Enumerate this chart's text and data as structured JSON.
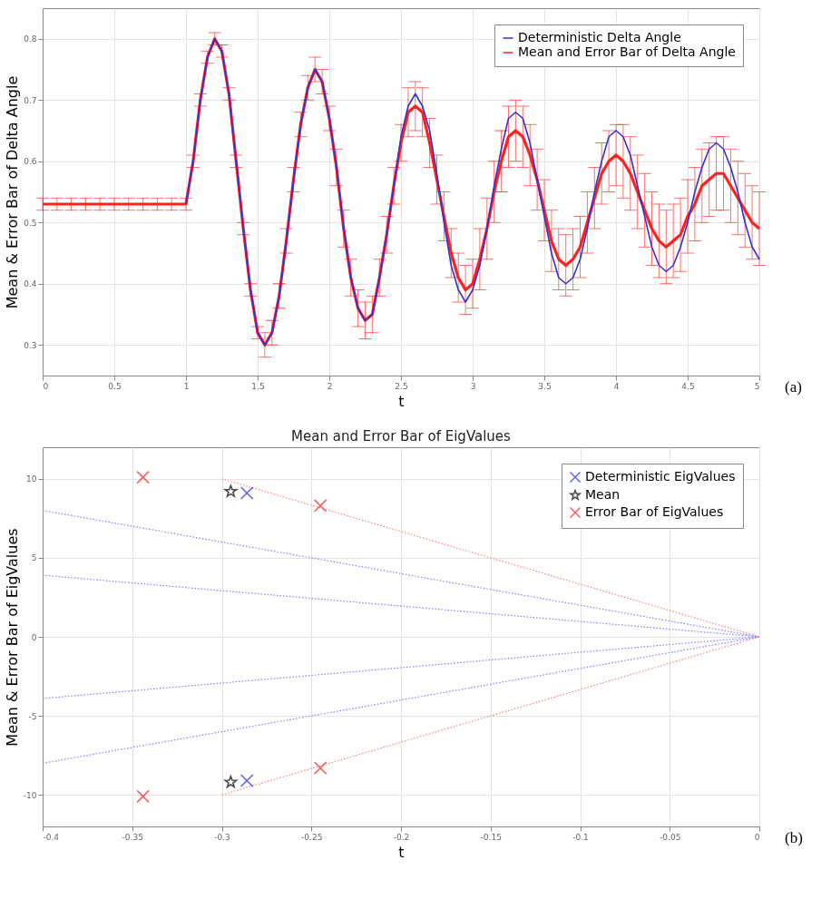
{
  "chart_data": [
    {
      "type": "line",
      "xlabel": "t",
      "ylabel": "Mean & Error Bar of Delta Angle",
      "annotations": [
        "(a)"
      ],
      "legend": "top right",
      "grid": true,
      "xlim": [
        0,
        5
      ],
      "xticks": [
        0,
        0.5,
        1,
        1.5,
        2,
        2.5,
        3,
        3.5,
        4,
        4.5,
        5
      ],
      "ylim": [
        0.25,
        0.85
      ],
      "yticks": [
        0.3,
        0.4,
        0.5,
        0.6,
        0.7,
        0.8
      ],
      "x": [
        0,
        0.1,
        0.2,
        0.3,
        0.4,
        0.5,
        0.6,
        0.7,
        0.8,
        0.9,
        1,
        1.05,
        1.1,
        1.15,
        1.2,
        1.25,
        1.3,
        1.35,
        1.4,
        1.45,
        1.5,
        1.55,
        1.6,
        1.65,
        1.7,
        1.75,
        1.8,
        1.85,
        1.9,
        1.95,
        2,
        2.05,
        2.1,
        2.15,
        2.2,
        2.25,
        2.3,
        2.35,
        2.4,
        2.45,
        2.5,
        2.55,
        2.6,
        2.65,
        2.7,
        2.75,
        2.8,
        2.85,
        2.9,
        2.95,
        3,
        3.05,
        3.1,
        3.15,
        3.2,
        3.25,
        3.3,
        3.35,
        3.4,
        3.45,
        3.5,
        3.55,
        3.6,
        3.65,
        3.7,
        3.75,
        3.8,
        3.85,
        3.9,
        3.95,
        4,
        4.05,
        4.1,
        4.15,
        4.2,
        4.25,
        4.3,
        4.35,
        4.4,
        4.45,
        4.5,
        4.55,
        4.6,
        4.65,
        4.7,
        4.75,
        4.8,
        4.85,
        4.9,
        4.95,
        5
      ],
      "series": [
        {
          "name": "Deterministic Delta Angle",
          "color": "#3333cc",
          "values": [
            null,
            null,
            null,
            null,
            null,
            null,
            null,
            null,
            null,
            null,
            0.53,
            0.6,
            0.7,
            0.77,
            0.8,
            0.78,
            0.71,
            0.6,
            0.49,
            0.39,
            0.32,
            0.3,
            0.32,
            0.38,
            0.47,
            0.57,
            0.66,
            0.72,
            0.75,
            0.73,
            0.67,
            0.59,
            0.49,
            0.41,
            0.36,
            0.34,
            0.35,
            0.41,
            0.48,
            0.56,
            0.64,
            0.69,
            0.71,
            0.69,
            0.65,
            0.58,
            0.5,
            0.43,
            0.39,
            0.37,
            0.39,
            0.43,
            0.49,
            0.56,
            0.62,
            0.67,
            0.68,
            0.67,
            0.63,
            0.57,
            0.51,
            0.45,
            0.41,
            0.4,
            0.41,
            0.44,
            0.49,
            0.55,
            0.6,
            0.64,
            0.65,
            0.64,
            0.61,
            0.56,
            0.51,
            0.46,
            0.43,
            0.42,
            0.43,
            0.46,
            0.5,
            0.55,
            0.59,
            0.62,
            0.63,
            0.62,
            0.59,
            0.55,
            0.5,
            0.46,
            0.44
          ]
        },
        {
          "name": "Mean and Error Bar of Delta Angle",
          "color": "#ff2020",
          "values": [
            0.53,
            0.53,
            0.53,
            0.53,
            0.53,
            0.53,
            0.53,
            0.53,
            0.53,
            0.53,
            0.53,
            0.6,
            0.7,
            0.77,
            0.8,
            0.78,
            0.71,
            0.6,
            0.49,
            0.39,
            0.32,
            0.3,
            0.32,
            0.38,
            0.47,
            0.57,
            0.66,
            0.72,
            0.75,
            0.73,
            0.67,
            0.59,
            0.49,
            0.41,
            0.36,
            0.34,
            0.35,
            0.41,
            0.48,
            0.56,
            0.63,
            0.68,
            0.69,
            0.68,
            0.63,
            0.57,
            0.51,
            0.45,
            0.41,
            0.39,
            0.4,
            0.44,
            0.49,
            0.55,
            0.6,
            0.64,
            0.65,
            0.64,
            0.61,
            0.57,
            0.52,
            0.47,
            0.44,
            0.43,
            0.44,
            0.46,
            0.5,
            0.54,
            0.58,
            0.6,
            0.61,
            0.6,
            0.58,
            0.55,
            0.52,
            0.49,
            0.47,
            0.46,
            0.47,
            0.48,
            0.51,
            0.53,
            0.56,
            0.57,
            0.58,
            0.58,
            0.56,
            0.54,
            0.52,
            0.5,
            0.49
          ],
          "errors": [
            0.01,
            0.01,
            0.01,
            0.01,
            0.01,
            0.01,
            0.01,
            0.01,
            0.01,
            0.01,
            0.01,
            0.01,
            0.01,
            0.01,
            0.01,
            0.01,
            0.01,
            0.01,
            0.01,
            0.01,
            0.01,
            0.02,
            0.02,
            0.02,
            0.02,
            0.02,
            0.02,
            0.02,
            0.02,
            0.02,
            0.02,
            0.03,
            0.03,
            0.03,
            0.03,
            0.03,
            0.03,
            0.03,
            0.03,
            0.03,
            0.03,
            0.04,
            0.04,
            0.04,
            0.04,
            0.04,
            0.04,
            0.04,
            0.04,
            0.04,
            0.04,
            0.05,
            0.05,
            0.05,
            0.05,
            0.05,
            0.05,
            0.05,
            0.05,
            0.05,
            0.05,
            0.05,
            0.05,
            0.05,
            0.05,
            0.05,
            0.05,
            0.05,
            0.05,
            0.05,
            0.05,
            0.06,
            0.06,
            0.06,
            0.06,
            0.06,
            0.06,
            0.06,
            0.06,
            0.06,
            0.06,
            0.06,
            0.06,
            0.06,
            0.06,
            0.06,
            0.06,
            0.06,
            0.06,
            0.06,
            0.06
          ]
        }
      ]
    },
    {
      "type": "scatter",
      "title": "Mean and Error Bar of EigValues",
      "xlabel": "t",
      "ylabel": "Mean & Error Bar of EigValues",
      "annotations": [
        "(b)"
      ],
      "legend": "top right",
      "grid": true,
      "xlim": [
        -0.4,
        0
      ],
      "xticks": [
        -0.4,
        -0.35,
        -0.3,
        -0.25,
        -0.2,
        -0.15,
        -0.1,
        -0.05,
        0
      ],
      "ylim": [
        -12,
        12
      ],
      "yticks": [
        -10,
        -5,
        0,
        5,
        10
      ],
      "series": [
        {
          "type": "line",
          "line_style": "dotted",
          "color": "#8080ff",
          "x": [
            -0.4,
            0
          ],
          "values": [
            8,
            0
          ]
        },
        {
          "type": "line",
          "line_style": "dotted",
          "color": "#8080ff",
          "x": [
            -0.4,
            0
          ],
          "values": [
            3.9,
            0
          ]
        },
        {
          "type": "line",
          "line_style": "dotted",
          "color": "#8080ff",
          "x": [
            -0.4,
            0
          ],
          "values": [
            -3.9,
            0
          ]
        },
        {
          "type": "line",
          "line_style": "dotted",
          "color": "#8080ff",
          "x": [
            -0.4,
            0
          ],
          "values": [
            -8,
            0
          ]
        },
        {
          "type": "line",
          "line_style": "dotted",
          "color": "#ff8080",
          "x": [
            -0.3,
            0
          ],
          "values": [
            10,
            0
          ]
        },
        {
          "type": "line",
          "line_style": "dotted",
          "color": "#ff8080",
          "x": [
            -0.3,
            0
          ],
          "values": [
            -10,
            0
          ]
        },
        {
          "name": "Deterministic EigValues",
          "marker": "cross",
          "color": "#2020e0",
          "x": [
            -0.286,
            -0.286
          ],
          "values": [
            9.1,
            -9.1
          ]
        },
        {
          "name": "Mean",
          "marker": "star",
          "color": "#000000",
          "x": [
            -0.295,
            -0.295
          ],
          "values": [
            9.2,
            -9.2
          ]
        },
        {
          "name": "Error Bar of EigValues",
          "marker": "cross",
          "color": "#ee2020",
          "x": [
            -0.344,
            -0.245,
            -0.344,
            -0.245
          ],
          "values": [
            10.1,
            8.3,
            -10.1,
            -8.3
          ]
        }
      ]
    }
  ]
}
